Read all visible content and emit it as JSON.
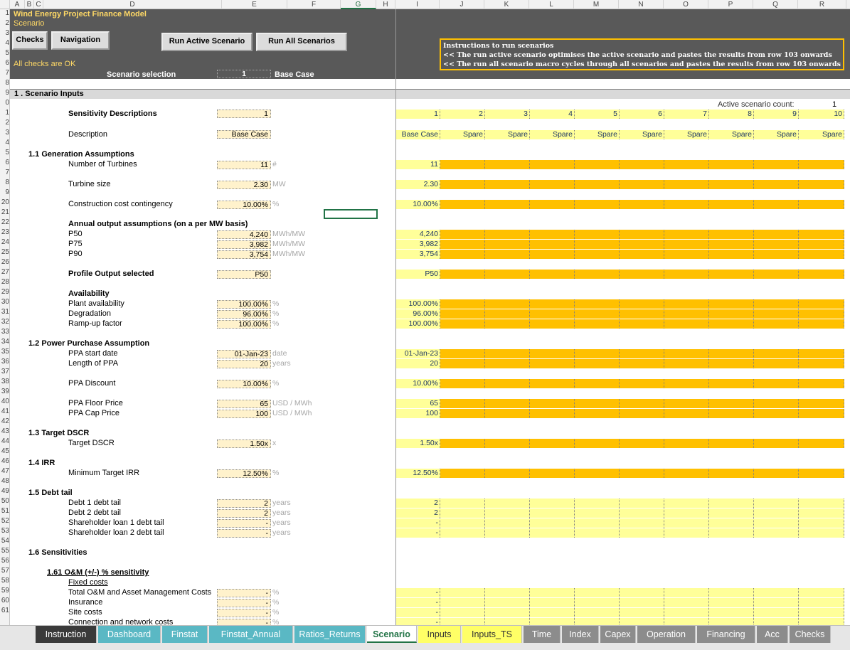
{
  "header": {
    "title": "Wind Energy Project Finance Model",
    "subtitle": "Scenario",
    "buttons": {
      "checks": "Checks",
      "navigation": "Navigation",
      "run_active": "Run Active Scenario",
      "run_all": "Run All Scenarios"
    },
    "status": "All checks are OK",
    "scenario_label": "Scenario selection",
    "scenario_number": "1",
    "scenario_name": "Base Case",
    "instructions": {
      "title": "Instructions to run scenarios",
      "line1": "<< The run active scenario optimises the active scenario and pastes the results from row 103 onwards",
      "line2": "<< The run all scenario macro cycles through all scenarios and pastes the results from row 103 onwards"
    }
  },
  "columns": [
    "A",
    "B",
    "C",
    "D",
    "E",
    "F",
    "G",
    "H",
    "I",
    "J",
    "K",
    "L",
    "M",
    "N",
    "O",
    "P",
    "Q",
    "R"
  ],
  "rows": [
    "1",
    "2",
    "3",
    "4",
    "5",
    "6",
    "7",
    "8",
    "9",
    "0",
    "1",
    "2",
    "3",
    "4",
    "5",
    "6",
    "7",
    "8",
    "9",
    "20",
    "21",
    "22",
    "23",
    "24",
    "25",
    "26",
    "27",
    "28",
    "29",
    "30",
    "31",
    "32",
    "33",
    "34",
    "35",
    "36",
    "37",
    "38",
    "39",
    "40",
    "41",
    "42",
    "43",
    "44",
    "45",
    "46",
    "47",
    "48",
    "49",
    "50",
    "51",
    "52",
    "53",
    "54",
    "55",
    "56",
    "57",
    "58",
    "59",
    "60",
    "61"
  ],
  "section": {
    "title": "1 .  Scenario Inputs",
    "active_count_label": "Active scenario count:",
    "active_count_value": "1",
    "sens_desc_label": "Sensitivity Descriptions",
    "sens_desc_value": "1",
    "description_label": "Description",
    "description_value": "Base Case",
    "scenario_numbers": [
      "1",
      "2",
      "3",
      "4",
      "5",
      "6",
      "7",
      "8",
      "9",
      "10"
    ],
    "scenario_names": [
      "Base Case",
      "Spare",
      "Spare",
      "Spare",
      "Spare",
      "Spare",
      "Spare",
      "Spare",
      "Spare",
      "Spare"
    ]
  },
  "rows_data": {
    "gen_head": "1.1  Generation Assumptions",
    "turbines": {
      "label": "Number of Turbines",
      "value": "11",
      "unit": "#"
    },
    "turbine_size": {
      "label": "Turbine size",
      "value": "2.30",
      "unit": "MW"
    },
    "contingency": {
      "label": "Construction cost contingency",
      "value": "10.00%",
      "unit": "%"
    },
    "annual_head": "Annual output assumptions (on a per MW basis)",
    "p50": {
      "label": "P50",
      "value": "4,240",
      "unit": "MWh/MW"
    },
    "p75": {
      "label": "P75",
      "value": "3,982",
      "unit": "MWh/MW"
    },
    "p90": {
      "label": "P90",
      "value": "3,754",
      "unit": "MWh/MW"
    },
    "profile": {
      "label": "Profile Output selected",
      "value": "P50"
    },
    "avail_head": "Availability",
    "plant_avail": {
      "label": "Plant availability",
      "value": "100.00%",
      "unit": "%"
    },
    "degradation": {
      "label": "Degradation",
      "value": "96.00%",
      "unit": "%"
    },
    "rampup": {
      "label": "Ramp-up factor",
      "value": "100.00%",
      "unit": "%"
    },
    "ppa_head": "1.2  Power Purchase Assumption",
    "ppa_start": {
      "label": "PPA start date",
      "value": "01-Jan-23",
      "unit": "date"
    },
    "ppa_length": {
      "label": "Length of PPA",
      "value": "20",
      "unit": "years"
    },
    "ppa_discount": {
      "label": "PPA Discount",
      "value": "10.00%",
      "unit": "%"
    },
    "ppa_floor": {
      "label": "PPA Floor Price",
      "value": "65",
      "unit": "USD / MWh"
    },
    "ppa_cap": {
      "label": "PPA Cap Price",
      "value": "100",
      "unit": "USD / MWh"
    },
    "dscr_head": "1.3  Target DSCR",
    "dscr": {
      "label": "Target DSCR",
      "value": "1.50x",
      "unit": "x"
    },
    "irr_head": "1.4  IRR",
    "irr": {
      "label": "Minimum Target IRR",
      "value": "12.50%",
      "unit": "%"
    },
    "tail_head": "1.5  Debt tail",
    "debt1": {
      "label": "Debt 1 debt tail",
      "value": "2",
      "unit": "years"
    },
    "debt2": {
      "label": "Debt 2 debt tail",
      "value": "2",
      "unit": "years"
    },
    "sh1": {
      "label": "Shareholder loan 1 debt tail",
      "value": "-",
      "unit": "years"
    },
    "sh2": {
      "label": "Shareholder loan 2 debt tail",
      "value": "-",
      "unit": "years"
    },
    "sens_head": "1.6  Sensitivities",
    "om_head": "1.61  O&M  (+/-) % sensitivity",
    "fixed_head": "Fixed costs",
    "om_total": {
      "label": "Total O&M and Asset Management Costs",
      "value": "-",
      "unit": "%"
    },
    "insurance": {
      "label": "Insurance",
      "value": "-",
      "unit": "%"
    },
    "site": {
      "label": "Site costs",
      "value": "-",
      "unit": "%"
    },
    "network": {
      "label": "Connection and network costs",
      "value": "-",
      "unit": "%"
    }
  },
  "tabs": [
    {
      "label": "Instruction",
      "color": "#3a3a3a"
    },
    {
      "label": "Dashboard",
      "color": "#5ab8c4"
    },
    {
      "label": "Finstat",
      "color": "#5ab8c4"
    },
    {
      "label": "Finstat_Annual",
      "color": "#5ab8c4"
    },
    {
      "label": "Ratios_Returns",
      "color": "#5ab8c4"
    },
    {
      "label": "Scenario",
      "color": "#ffffff"
    },
    {
      "label": "Inputs",
      "color": "#ffff66"
    },
    {
      "label": "Inputs_TS",
      "color": "#ffff66"
    },
    {
      "label": "Time",
      "color": "#8c8c8c"
    },
    {
      "label": "Index",
      "color": "#8c8c8c"
    },
    {
      "label": "Capex",
      "color": "#8c8c8c"
    },
    {
      "label": "Operation",
      "color": "#8c8c8c"
    },
    {
      "label": "Financing",
      "color": "#8c8c8c"
    },
    {
      "label": "Acc",
      "color": "#8c8c8c"
    },
    {
      "label": "Checks",
      "color": "#8c8c8c"
    }
  ]
}
